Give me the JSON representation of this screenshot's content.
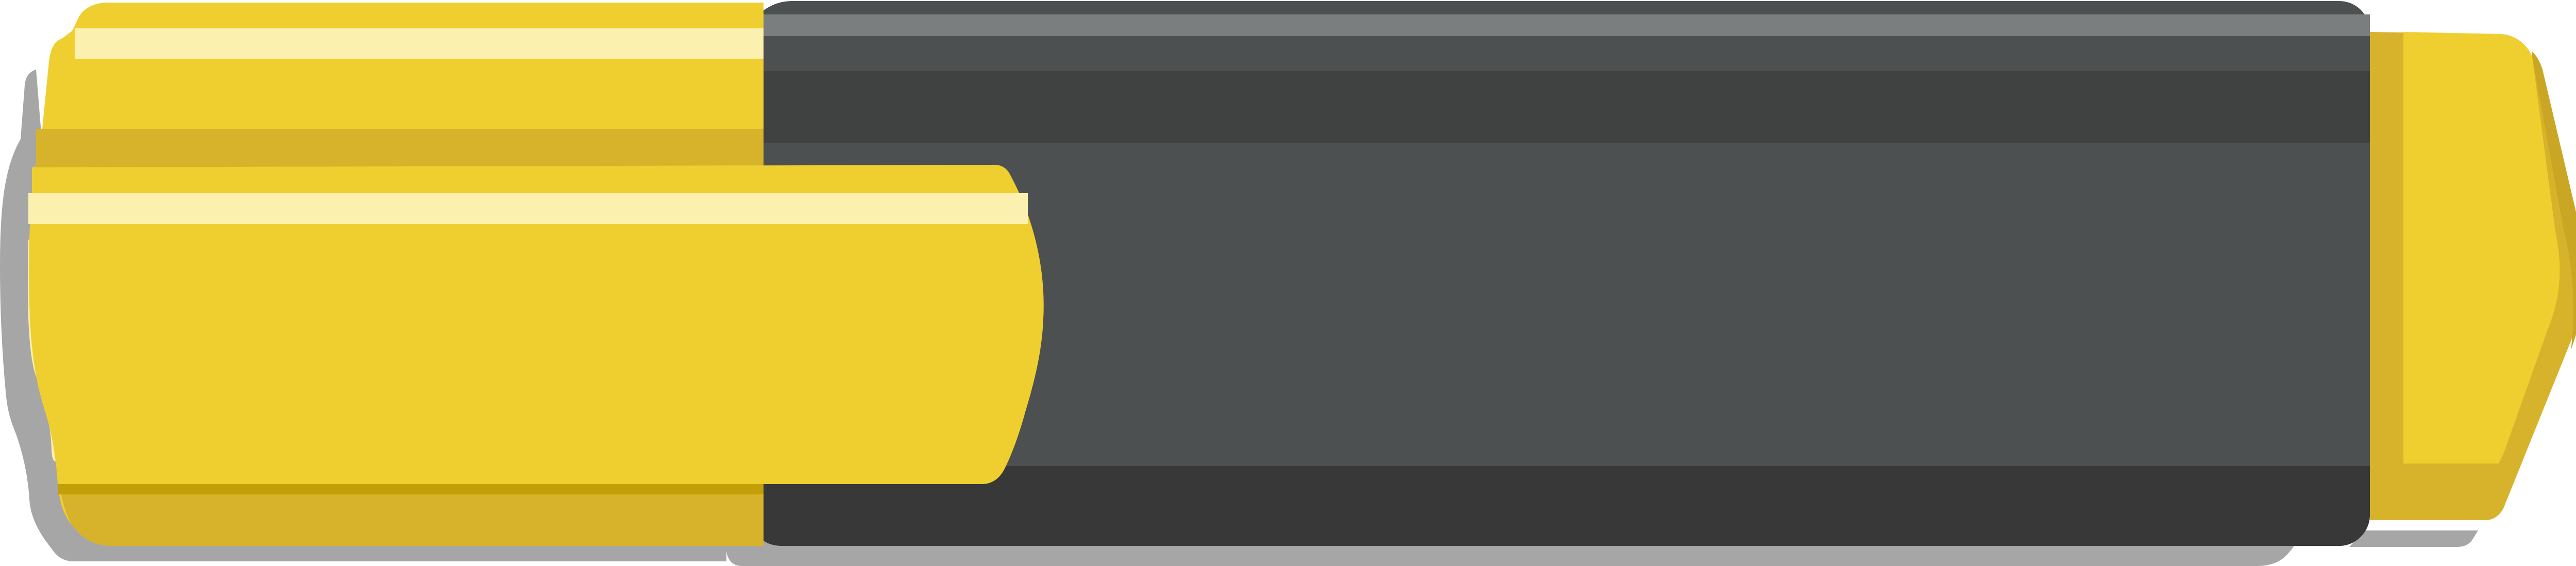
{
  "illustration": {
    "subject": "highlighter-icon",
    "colors": {
      "shadow": "#A6A6A6",
      "cap_yellow": "#EFCF2F",
      "cap_yellow_dark": "#D6B32B",
      "cap_yellow_darker": "#C29F06",
      "highlight": "#FCF0AE",
      "body_dark": "#4C5051",
      "body_band": "#404241",
      "body_bottom": "#383838",
      "body_top": "#5A5E5F",
      "body_stripe": "#7A7E7F",
      "tip_yellow": "#EFCF2F",
      "tip_yellow_dark": "#D6B32B",
      "tip_edge": "#C9A623"
    }
  }
}
